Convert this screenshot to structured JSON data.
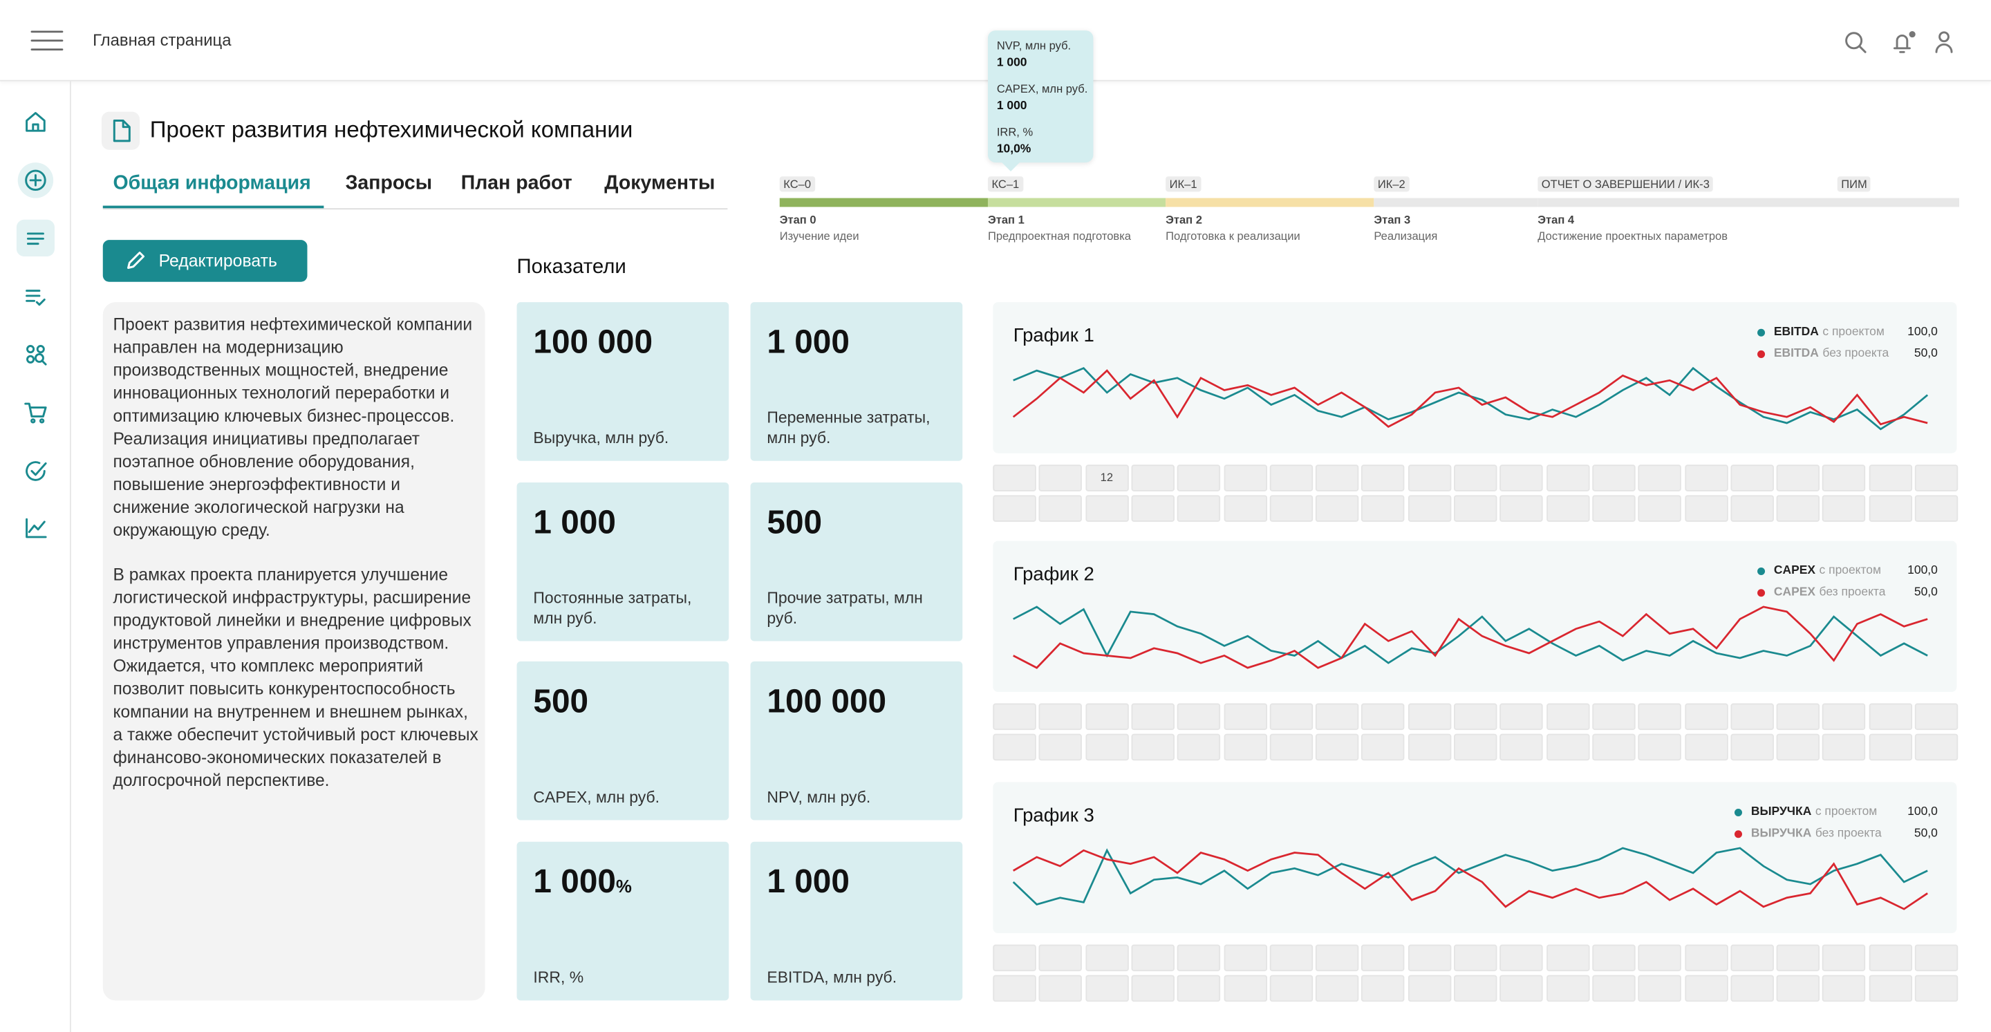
{
  "header": {
    "title": "Главная страница"
  },
  "page": {
    "title": "Проект развития нефтехимической компании",
    "tabs": [
      "Общая информация",
      "Запросы",
      "План работ",
      "Документы"
    ],
    "button": "Редактировать",
    "description": [
      "Проект развития нефтехимической компании направлен на модернизацию производственных мощностей, внедрение инновационных технологий переработки и оптимизацию ключевых бизнес-процессов. Реализация инициативы предполагает поэтапное обновление оборудования, повышение энергоэффективности и снижение экологической нагрузки на окружающую среду.",
      "В рамках проекта планируется улучшение логистической инфраструктуры, расширение продуктовой линейки и внедрение цифровых инструментов управления производством. Ожидается, что комплекс мероприятий позволит повысить конкурентоспособность компании на внутреннем и внешнем рынках, а также обеспечит устойчивый рост ключевых финансово-экономических показателей в долгосрочной перспективе."
    ],
    "kpi_title": "Показатели"
  },
  "kpis": [
    {
      "value": "100 000",
      "label": "Выручка, млн руб."
    },
    {
      "value": "1 000",
      "label": "Переменные затраты, млн руб."
    },
    {
      "value": "1 000",
      "label": "Постоянные затраты, млн руб."
    },
    {
      "value": "500",
      "label": "Прочие затраты, млн руб."
    },
    {
      "value": "500",
      "label": "CAPEX, млн руб."
    },
    {
      "value": "100 000",
      "label": "NPV, млн руб."
    },
    {
      "value": "1 000",
      "unit": "%",
      "label": "IRR, %"
    },
    {
      "value": "1 000",
      "label": "EBITDA, млн руб."
    }
  ],
  "timeline": {
    "milestones": [
      "КС–0",
      "КС–1",
      "ИК–1",
      "ИК–2",
      "ОТЧЕТ О ЗАВЕРШЕНИИ / ИК-3",
      "ПИМ"
    ],
    "stages": [
      {
        "name": "Этап 0",
        "desc": "Изучение идеи",
        "color": "#8fb35c"
      },
      {
        "name": "Этап 1",
        "desc": "Предпроектная подготовка",
        "color": "#c6de9d"
      },
      {
        "name": "Этап 2",
        "desc": "Подготовка к реализации",
        "color": "#f6e0a6"
      },
      {
        "name": "Этап 3",
        "desc": "Реализация",
        "color": "#e8e8e8"
      },
      {
        "name": "Этап 4",
        "desc": "Достижение проектных параметров",
        "color": "#e8e8e8"
      }
    ]
  },
  "tooltip": {
    "items": [
      {
        "label": "NVP, млн руб.",
        "value": "1 000"
      },
      {
        "label": "CAPEX, млн руб.",
        "value": "1 000"
      },
      {
        "label": "IRR, %",
        "value": "10,0%"
      }
    ]
  },
  "grid_cell_label": "12",
  "charts": [
    {
      "title": "График 1",
      "series": [
        {
          "key": "EBITDA",
          "name": "с проектом",
          "legend_value": "100,0",
          "color": "#1a8a8f",
          "values": [
            70,
            78,
            72,
            80,
            60,
            75,
            68,
            72,
            62,
            55,
            64,
            50,
            58,
            45,
            40,
            48,
            38,
            44,
            52,
            60,
            54,
            42,
            38,
            46,
            40,
            50,
            62,
            72,
            58,
            80,
            65,
            52,
            40,
            35,
            44,
            38,
            46,
            30,
            42,
            58
          ]
        },
        {
          "key": "EBITDA",
          "name": "без проекта",
          "legend_value": "50,0",
          "color": "#d9262f",
          "values": [
            40,
            55,
            72,
            60,
            78,
            55,
            70,
            40,
            72,
            62,
            66,
            58,
            64,
            50,
            60,
            48,
            32,
            42,
            60,
            64,
            50,
            56,
            44,
            40,
            50,
            60,
            74,
            66,
            70,
            62,
            72,
            50,
            44,
            40,
            48,
            36,
            58,
            34,
            40,
            35
          ]
        }
      ]
    },
    {
      "title": "График 2",
      "series": [
        {
          "key": "CAPEX",
          "name": "с проектом",
          "legend_value": "100,0",
          "color": "#1a8a8f",
          "values": [
            70,
            80,
            66,
            78,
            40,
            76,
            74,
            64,
            58,
            48,
            56,
            44,
            40,
            52,
            38,
            48,
            34,
            46,
            42,
            56,
            72,
            52,
            62,
            50,
            40,
            48,
            36,
            44,
            40,
            52,
            42,
            38,
            44,
            40,
            48,
            72,
            56,
            40,
            50,
            40
          ]
        },
        {
          "key": "CAPEX",
          "name": "без проекта",
          "legend_value": "50,0",
          "color": "#d9262f",
          "values": [
            40,
            30,
            50,
            42,
            40,
            38,
            46,
            42,
            34,
            40,
            30,
            36,
            44,
            30,
            38,
            66,
            52,
            60,
            40,
            70,
            56,
            48,
            42,
            52,
            62,
            68,
            56,
            74,
            58,
            62,
            46,
            70,
            80,
            76,
            58,
            36,
            66,
            74,
            64,
            70
          ]
        }
      ]
    },
    {
      "title": "График 3",
      "series": [
        {
          "key": "ВЫРУЧКА",
          "name": "с проектом",
          "legend_value": "100,0",
          "color": "#1a8a8f",
          "values": [
            50,
            30,
            36,
            32,
            78,
            40,
            52,
            54,
            48,
            60,
            44,
            58,
            62,
            56,
            66,
            60,
            54,
            64,
            72,
            58,
            66,
            74,
            68,
            60,
            64,
            70,
            80,
            74,
            66,
            58,
            76,
            80,
            64,
            52,
            48,
            60,
            66,
            74,
            50,
            60
          ]
        },
        {
          "key": "ВЫРУЧКА",
          "name": "без проекта",
          "legend_value": "50,0",
          "color": "#d9262f",
          "values": [
            60,
            72,
            64,
            78,
            70,
            66,
            72,
            58,
            76,
            70,
            60,
            70,
            76,
            74,
            58,
            44,
            58,
            34,
            42,
            62,
            50,
            28,
            42,
            36,
            44,
            36,
            40,
            50,
            34,
            44,
            30,
            42,
            28,
            36,
            40,
            66,
            30,
            36,
            26,
            40
          ]
        }
      ]
    }
  ]
}
